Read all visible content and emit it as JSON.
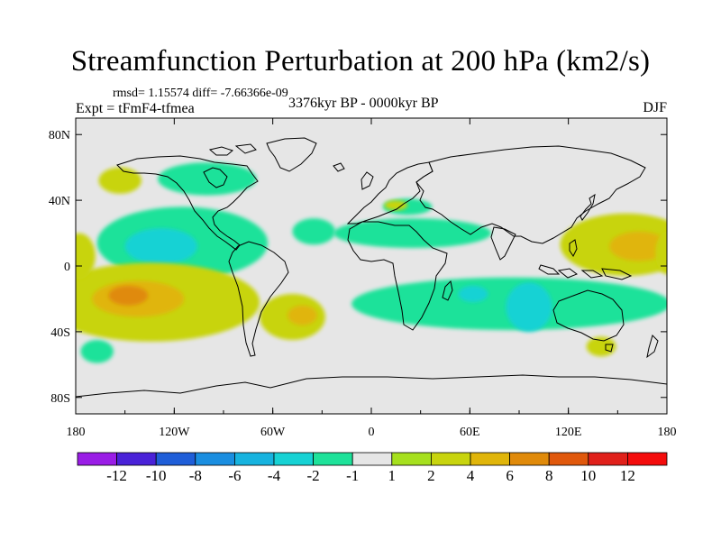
{
  "chart_data": {
    "type": "contour-map",
    "title": "Streamfunction Perturbation at 200 hPa (km2/s)",
    "stats": "rmsd= 1.15574 diff= -7.66366e-09",
    "left_label": "Expt = tFmF4-tfmea",
    "center_label": "3376kyr BP - 0000kyr BP",
    "right_label": "DJF",
    "x_ticks": [
      {
        "value": -180,
        "label": "180"
      },
      {
        "value": -120,
        "label": "120W"
      },
      {
        "value": -60,
        "label": "60W"
      },
      {
        "value": 0,
        "label": "0"
      },
      {
        "value": 60,
        "label": "60E"
      },
      {
        "value": 120,
        "label": "120E"
      },
      {
        "value": 180,
        "label": "180"
      }
    ],
    "y_ticks": [
      {
        "value": 80,
        "label": "80N"
      },
      {
        "value": 40,
        "label": "40N"
      },
      {
        "value": 0,
        "label": "0"
      },
      {
        "value": -40,
        "label": "40S"
      },
      {
        "value": -80,
        "label": "80S"
      }
    ],
    "lon_range": [
      -180,
      180
    ],
    "lat_range": [
      -90,
      90
    ],
    "colorbar": {
      "labels": [
        "-12",
        "-10",
        "-8",
        "-6",
        "-4",
        "-2",
        "-1",
        "1",
        "2",
        "4",
        "6",
        "8",
        "10",
        "12"
      ],
      "colors": [
        "#9a1de6",
        "#4a22d8",
        "#1f5ed8",
        "#1a8ee0",
        "#17b3df",
        "#17d2d4",
        "#1ee29a",
        "#e6e6e6",
        "#a6e01e",
        "#c8d40e",
        "#e0b50a",
        "#e08a0a",
        "#e0580c",
        "#e0201a",
        "#f40c0c"
      ]
    },
    "fields": [
      {
        "label": "2",
        "lon": -153,
        "lat": 52,
        "rx": 13,
        "ry": 8
      },
      {
        "label": "-2",
        "lon": -100,
        "lat": 53,
        "rx": 30,
        "ry": 10
      },
      {
        "label": "-2",
        "lon": -115,
        "lat": 14,
        "rx": 52,
        "ry": 22
      },
      {
        "label": "-4",
        "lon": -128,
        "lat": 12,
        "rx": 22,
        "ry": 11
      },
      {
        "label": "2",
        "lon": -134,
        "lat": -22,
        "rx": 66,
        "ry": 24
      },
      {
        "label": "4",
        "lon": -142,
        "lat": -20,
        "rx": 28,
        "ry": 11
      },
      {
        "label": "6",
        "lon": -148,
        "lat": -18,
        "rx": 12,
        "ry": 6
      },
      {
        "label": "2",
        "lon": -178,
        "lat": 6,
        "rx": 10,
        "ry": 14
      },
      {
        "label": "-2",
        "lon": -167,
        "lat": -52,
        "rx": 10,
        "ry": 7
      },
      {
        "label": "2",
        "lon": -48,
        "lat": -31,
        "rx": 20,
        "ry": 14
      },
      {
        "label": "4",
        "lon": -42,
        "lat": -30,
        "rx": 9,
        "ry": 6
      },
      {
        "label": "-2",
        "lon": -35,
        "lat": 21,
        "rx": 13,
        "ry": 8
      },
      {
        "label": "-2",
        "lon": 25,
        "lat": 20,
        "rx": 48,
        "ry": 9
      },
      {
        "label": "-2",
        "lon": 22,
        "lat": 36,
        "rx": 15,
        "ry": 5
      },
      {
        "label": "2",
        "lon": 15,
        "lat": 37,
        "rx": 7,
        "ry": 3
      },
      {
        "label": "-2",
        "lon": 85,
        "lat": -23,
        "rx": 97,
        "ry": 16
      },
      {
        "label": "-4",
        "lon": 96,
        "lat": -25,
        "rx": 14,
        "ry": 15
      },
      {
        "label": "-4",
        "lon": 62,
        "lat": -17,
        "rx": 9,
        "ry": 5
      },
      {
        "label": "2",
        "lon": 155,
        "lat": 13,
        "rx": 40,
        "ry": 19
      },
      {
        "label": "4",
        "lon": 163,
        "lat": 12,
        "rx": 18,
        "ry": 9
      },
      {
        "label": "2",
        "lon": 140,
        "lat": -49,
        "rx": 9,
        "ry": 6
      },
      {
        "label": "2",
        "lon": 180,
        "lat": 8,
        "rx": 7,
        "ry": 13
      }
    ]
  }
}
